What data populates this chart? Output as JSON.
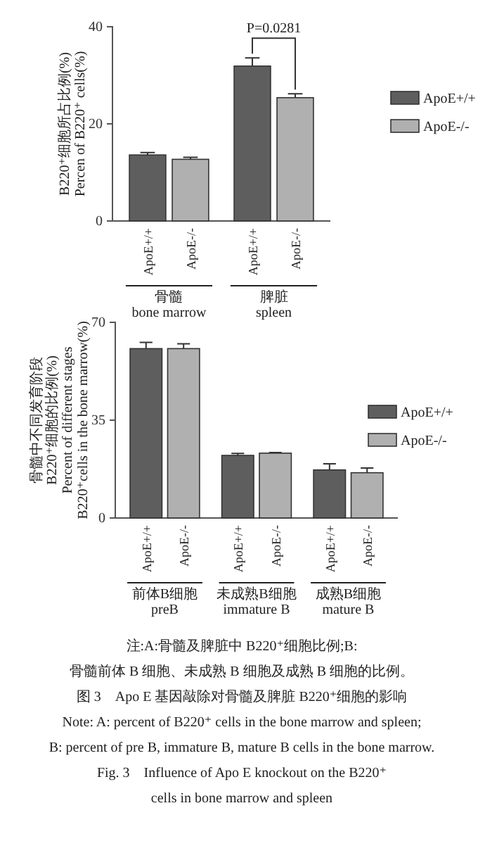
{
  "chart_data": [
    {
      "type": "bar",
      "ylabel": "B220⁺细胞所占比例(%)\nPercen of B220⁺ cells(%)",
      "categories": [
        "骨髓\nbone marrow",
        "脾脏\nspleen"
      ],
      "ylim": [
        0,
        40
      ],
      "yticks": [
        0,
        20,
        40
      ],
      "legend": "right",
      "annotations": [
        "P=0.0281"
      ],
      "series": [
        {
          "name": "ApoE+/+",
          "color": "#5e5e5e",
          "values": [
            13.6,
            31.9
          ],
          "errors": [
            0.5,
            1.7
          ]
        },
        {
          "name": "ApoE-/-",
          "color": "#b0b0b0",
          "values": [
            12.7,
            25.4
          ],
          "errors": [
            0.4,
            0.8
          ]
        }
      ]
    },
    {
      "type": "bar",
      "ylabel": "骨髓中不同发育阶段\nB220⁺细胞的比例(%)\nPercent of different stages\nB220⁺cells in the bone marrow(%)",
      "categories": [
        "前体B细胞\npreB",
        "未成熟B细胞\nimmature B",
        "成熟B细胞\nmature B"
      ],
      "ylim": [
        0,
        70
      ],
      "yticks": [
        0,
        35,
        70
      ],
      "legend": "right",
      "series": [
        {
          "name": "ApoE+/+",
          "color": "#5e5e5e",
          "values": [
            60.6,
            22.4,
            17.2
          ],
          "errors": [
            2.2,
            0.7,
            2.2
          ]
        },
        {
          "name": "ApoE-/-",
          "color": "#b0b0b0",
          "values": [
            60.6,
            23.2,
            16.2
          ],
          "errors": [
            1.7,
            0.2,
            1.7
          ]
        }
      ],
      "annotations": [
        "注:A:骨髓及脾脏中 B220⁺细胞比例;B:",
        "骨髓前体 B 细胞、未成熟 B 细胞及成熟 B 细胞的比例。",
        "图 3　Apo E 基因敲除对骨髓及脾脏 B220⁺细胞的影响",
        "Note: A: percent of B220⁺ cells in the bone marrow and spleen;",
        "B: percent of pre B, immature B, mature B cells in the bone marrow.",
        "Fig. 3　Influence of Apo E knockout on the B220⁺",
        "cells in bone marrow and spleen"
      ]
    }
  ]
}
